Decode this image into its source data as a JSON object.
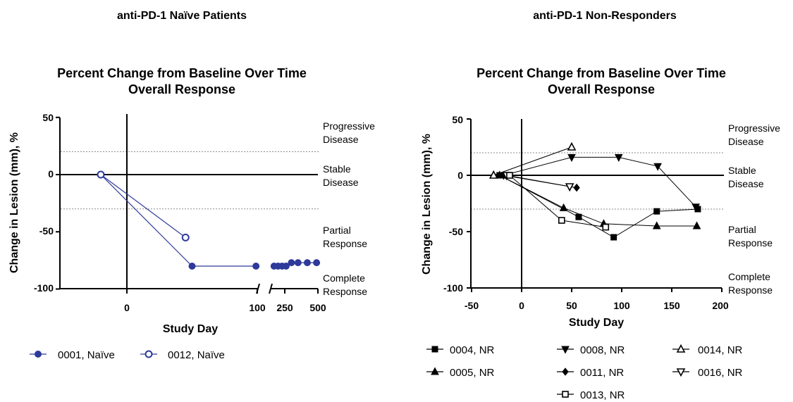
{
  "panels": [
    {
      "heading": "anti-PD-1 Naïve Patients",
      "title_lines": [
        "Percent Change from Baseline Over Time",
        "Overall Response"
      ],
      "ylabel": "Change in Lesion (mm), %",
      "xlabel": "Study Day",
      "y_ticks": [
        "50",
        "0",
        "-50",
        "-100"
      ],
      "x_ticks": [
        "0",
        "100",
        "250",
        "500"
      ],
      "zones": [
        {
          "lines": [
            "Progressive",
            "Disease"
          ]
        },
        {
          "lines": [
            "Stable",
            "Disease"
          ]
        },
        {
          "lines": [
            "Partial",
            "Response"
          ]
        },
        {
          "lines": [
            "Complete",
            "Response"
          ]
        }
      ],
      "legend": [
        {
          "label": "0001, Naïve",
          "marker": "filled-circle"
        },
        {
          "label": "0012, Naïve",
          "marker": "open-circle"
        }
      ]
    },
    {
      "heading": "anti-PD-1 Non-Responders",
      "title_lines": [
        "Percent Change from Baseline Over Time",
        "Overall Response"
      ],
      "ylabel": "Change in Lesion (mm), %",
      "xlabel": "Study Day",
      "y_ticks": [
        "50",
        "0",
        "-50",
        "-100"
      ],
      "x_ticks": [
        "-50",
        "0",
        "50",
        "100",
        "150",
        "200"
      ],
      "zones": [
        {
          "lines": [
            "Progressive",
            "Disease"
          ]
        },
        {
          "lines": [
            "Stable",
            "Disease"
          ]
        },
        {
          "lines": [
            "Partial",
            "Response"
          ]
        },
        {
          "lines": [
            "Complete",
            "Response"
          ]
        }
      ],
      "legend": [
        {
          "label": "0004, NR",
          "marker": "filled-square"
        },
        {
          "label": "0008, NR",
          "marker": "filled-triangle-down"
        },
        {
          "label": "0014, NR",
          "marker": "open-triangle-up"
        },
        {
          "label": "0005, NR",
          "marker": "filled-triangle-up"
        },
        {
          "label": "0011, NR",
          "marker": "filled-diamond"
        },
        {
          "label": "0016, NR",
          "marker": "open-triangle-down"
        },
        {
          "label": "0013, NR",
          "marker": "open-square"
        }
      ]
    }
  ],
  "chart_data": [
    {
      "type": "line",
      "title": "Percent Change from Baseline Over Time Overall Response",
      "xlabel": "Study Day",
      "ylabel": "Change in Lesion (mm), %",
      "ylim": [
        -100,
        50
      ],
      "x_axis": "broken",
      "x_segments": [
        [
          -50,
          100
        ],
        [
          150,
          500
        ]
      ],
      "reference_lines_y": [
        20,
        -30
      ],
      "grid": false,
      "legend_position": "bottom",
      "color": "#2e3a9a",
      "series": [
        {
          "name": "0001, Naïve",
          "marker": "filled-circle",
          "x": [
            -20,
            50,
            99,
            170,
            200,
            230,
            260,
            300,
            350,
            420,
            490
          ],
          "y": [
            0,
            -80,
            -80,
            -80,
            -80,
            -80,
            -80,
            -77,
            -77,
            -77,
            -77
          ]
        },
        {
          "name": "0012, Naïve",
          "marker": "open-circle",
          "x": [
            -20,
            45
          ],
          "y": [
            0,
            -55
          ]
        }
      ]
    },
    {
      "type": "line",
      "title": "Percent Change from Baseline Over Time Overall Response",
      "xlabel": "Study Day",
      "ylabel": "Change in Lesion (mm), %",
      "xlim": [
        -50,
        200
      ],
      "ylim": [
        -100,
        50
      ],
      "reference_lines_y": [
        20,
        -30
      ],
      "grid": false,
      "legend_position": "bottom",
      "color": "#000000",
      "series": [
        {
          "name": "0004, NR",
          "marker": "filled-square",
          "x": [
            -22,
            57,
            92,
            135,
            176
          ],
          "y": [
            0,
            -37,
            -55,
            -32,
            -30
          ]
        },
        {
          "name": "0008, NR",
          "marker": "filled-triangle-down",
          "x": [
            -18,
            50,
            97,
            136,
            174
          ],
          "y": [
            0,
            16,
            16,
            8,
            -28
          ]
        },
        {
          "name": "0014, NR",
          "marker": "open-triangle-up",
          "x": [
            -28,
            50
          ],
          "y": [
            0,
            25
          ]
        },
        {
          "name": "0005, NR",
          "marker": "filled-triangle-up",
          "x": [
            -22,
            42,
            82,
            135,
            175
          ],
          "y": [
            0,
            -29,
            -43,
            -45,
            -45
          ]
        },
        {
          "name": "0011, NR",
          "marker": "filled-diamond",
          "x": [
            -18,
            55
          ],
          "y": [
            0,
            -11
          ]
        },
        {
          "name": "0016, NR",
          "marker": "open-triangle-down",
          "x": [
            -15,
            48
          ],
          "y": [
            0,
            -10
          ]
        },
        {
          "name": "0013, NR",
          "marker": "open-square",
          "x": [
            -12,
            40,
            84
          ],
          "y": [
            0,
            -40,
            -46
          ]
        }
      ]
    }
  ]
}
